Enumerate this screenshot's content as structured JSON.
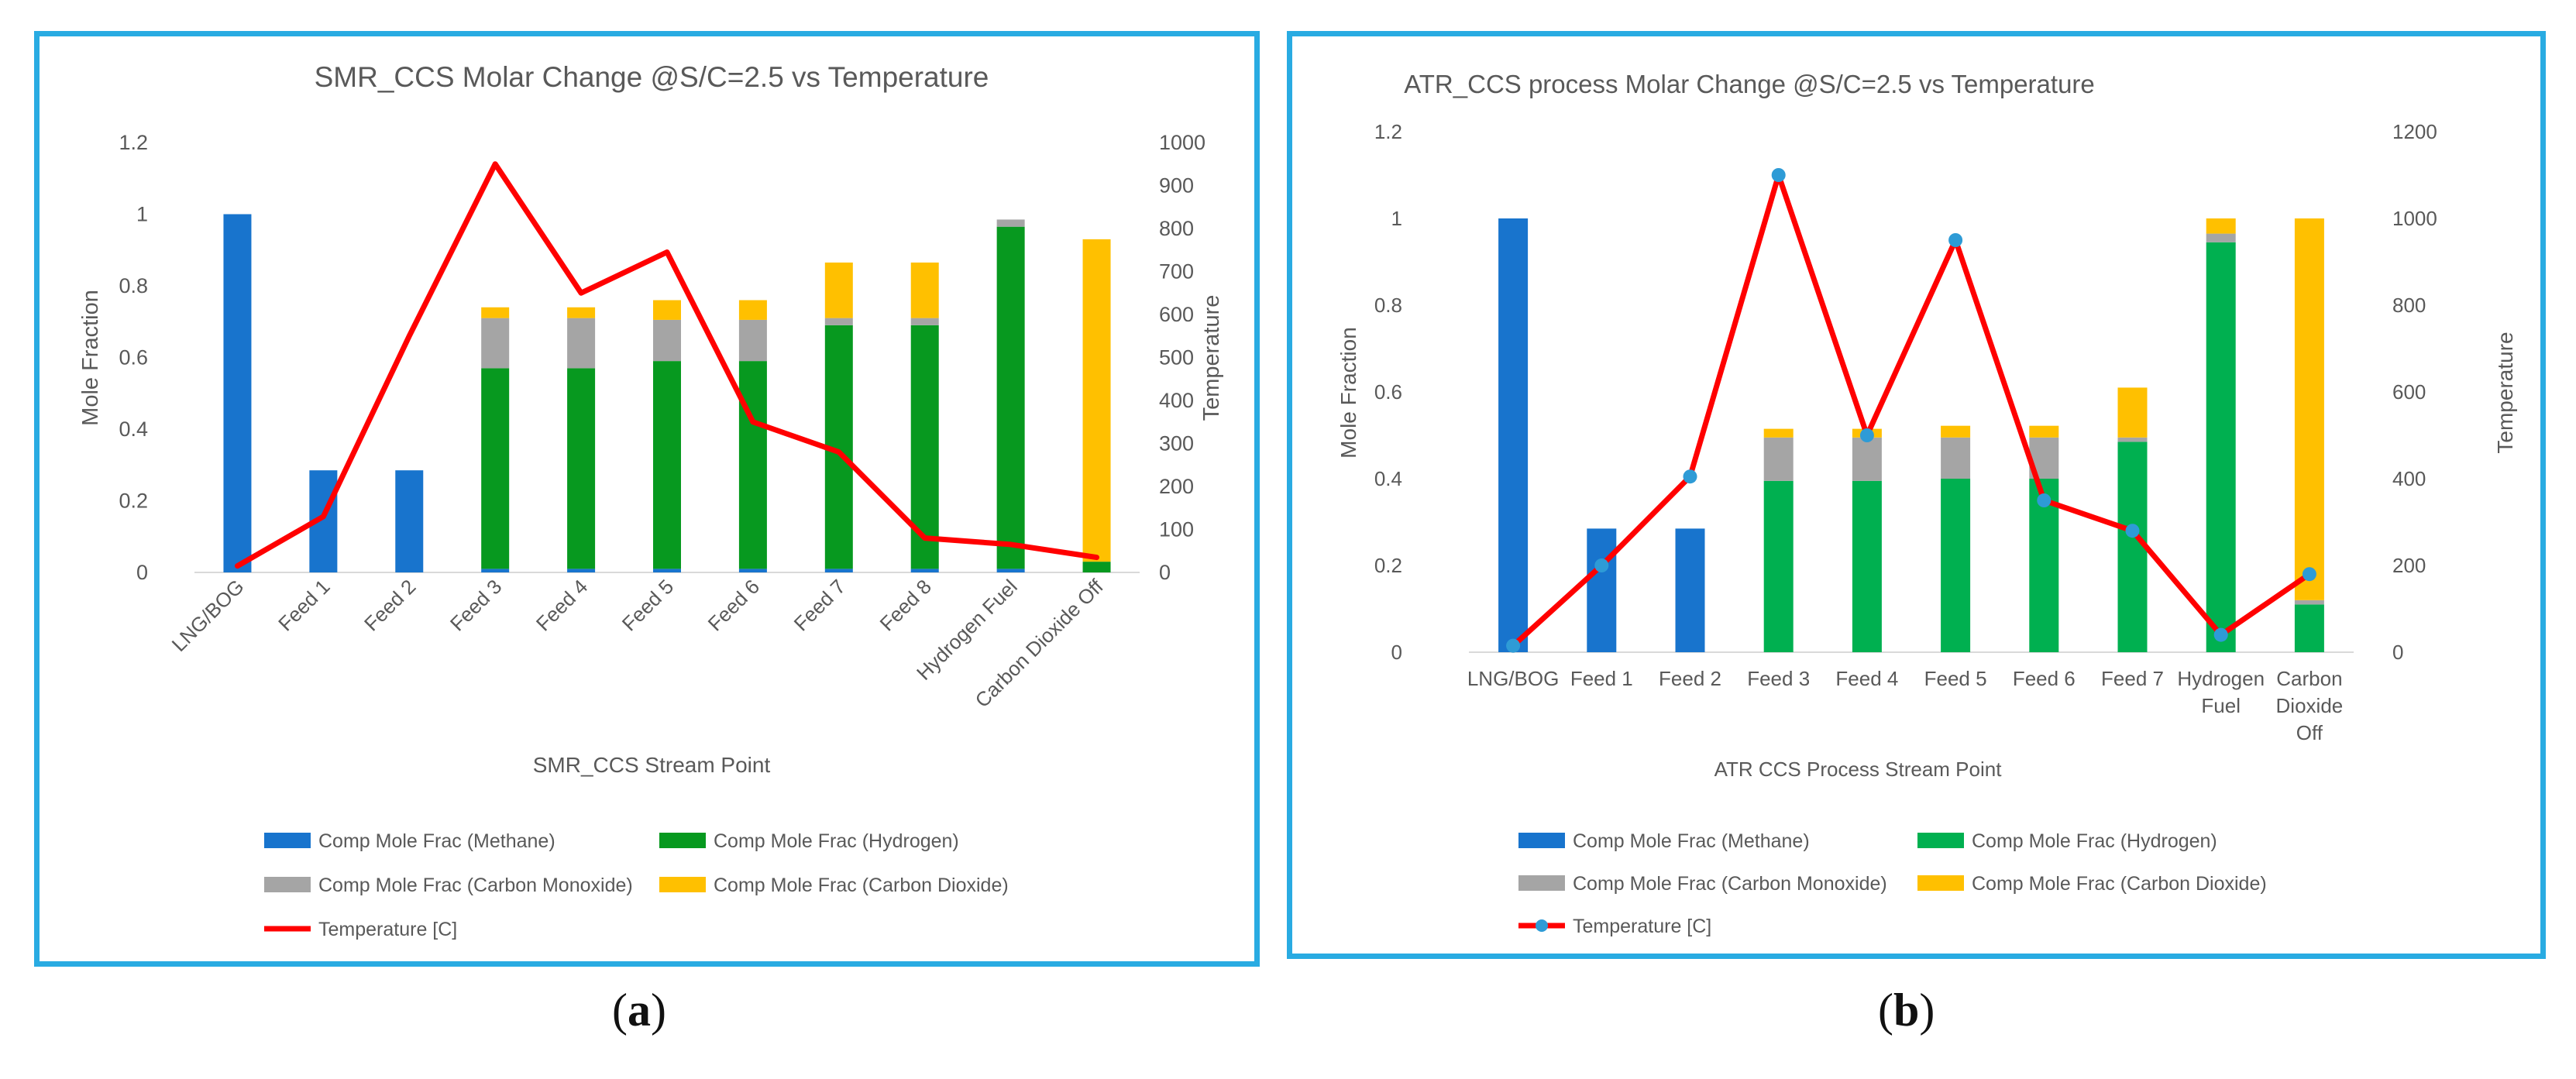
{
  "colors": {
    "methane": "#1874CD",
    "hydrogen_a": "#07991F",
    "hydrogen_b": "#00B050",
    "carbon_monoxide": "#A5A5A5",
    "carbon_dioxide": "#FFC000",
    "temperature": "#FF0000",
    "temperature_marker": "#2E9BD6",
    "frame": "#29ABE2"
  },
  "captions": {
    "a_open": "(",
    "a_letter": "a",
    "a_close": ")",
    "b_open": "(",
    "b_letter": "b",
    "b_close": ")"
  },
  "chart_data": [
    {
      "type": "bar",
      "stacked": true,
      "title": "SMR_CCS  Molar Change @S/C=2.5  vs Temperature",
      "xlabel": "SMR_CCS Stream Point",
      "ylabel": "Mole Fraction",
      "y2label": "Temperature",
      "ylim": [
        0,
        1.2
      ],
      "y2lim": [
        0,
        1000
      ],
      "yticks": [
        "0",
        "0.2",
        "0.4",
        "0.6",
        "0.8",
        "1",
        "1.2"
      ],
      "y2ticks": [
        "0",
        "100",
        "200",
        "300",
        "400",
        "500",
        "600",
        "700",
        "800",
        "900",
        "1000"
      ],
      "categories": [
        "LNG/BOG",
        "Feed 1",
        "Feed 2",
        "Feed 3",
        "Feed 4",
        "Feed 5",
        "Feed 6",
        "Feed 7",
        "Feed 8",
        "Hydrogen Fuel",
        "Carbon Dioxide Off"
      ],
      "series": [
        {
          "name": "Comp Mole Frac (Methane)",
          "color_key": "methane",
          "values": [
            1.0,
            0.285,
            0.285,
            0.01,
            0.01,
            0.01,
            0.01,
            0.01,
            0.01,
            0.01,
            0.0
          ]
        },
        {
          "name": "Comp Mole Frac (Hydrogen)",
          "color_key": "hydrogen_a",
          "values": [
            0.0,
            0.0,
            0.0,
            0.56,
            0.56,
            0.58,
            0.58,
            0.68,
            0.68,
            0.955,
            0.03
          ]
        },
        {
          "name": "Comp Mole Frac (Carbon Monoxide)",
          "color_key": "carbon_monoxide",
          "values": [
            0.0,
            0.0,
            0.0,
            0.14,
            0.14,
            0.115,
            0.115,
            0.02,
            0.02,
            0.02,
            0.0
          ]
        },
        {
          "name": "Comp Mole Frac (Carbon Dioxide)",
          "color_key": "carbon_dioxide",
          "values": [
            0.0,
            0.0,
            0.0,
            0.03,
            0.03,
            0.055,
            0.055,
            0.155,
            0.155,
            0.0,
            0.9
          ]
        }
      ],
      "line": {
        "name": "Temperature [C]",
        "values": [
          15,
          130,
          550,
          950,
          650,
          745,
          350,
          280,
          80,
          65,
          35
        ],
        "markers": false
      },
      "legend": "bottom"
    },
    {
      "type": "bar",
      "stacked": true,
      "title": "ATR_CCS process Molar Change @S/C=2.5 vs Temperature",
      "xlabel": "ATR CCS Process Stream Point",
      "ylabel": "Mole Fraction",
      "y2label": "Temperature",
      "ylim": [
        0,
        1.2
      ],
      "y2lim": [
        0,
        1200
      ],
      "yticks": [
        "0",
        "0.2",
        "0.4",
        "0.6",
        "0.8",
        "1",
        "1.2"
      ],
      "y2ticks": [
        "0",
        "200",
        "400",
        "600",
        "800",
        "1000",
        "1200"
      ],
      "categories": [
        "LNG/BOG",
        "Feed 1",
        "Feed 2",
        "Feed 3",
        "Feed 4",
        "Feed 5",
        "Feed 6",
        "Feed 7",
        "Hydrogen Fuel",
        "Carbon Dioxide Off"
      ],
      "category_lines": [
        [
          "LNG/BOG"
        ],
        [
          "Feed 1"
        ],
        [
          "Feed 2"
        ],
        [
          "Feed 3"
        ],
        [
          "Feed 4"
        ],
        [
          "Feed 5"
        ],
        [
          "Feed 6"
        ],
        [
          "Feed 7"
        ],
        [
          "Hydrogen",
          "Fuel"
        ],
        [
          "Carbon",
          "Dioxide",
          "Off"
        ]
      ],
      "series": [
        {
          "name": "Comp Mole Frac (Methane)",
          "color_key": "methane",
          "values": [
            1.0,
            0.285,
            0.285,
            0.0,
            0.0,
            0.0,
            0.0,
            0.0,
            0.0,
            0.0
          ]
        },
        {
          "name": "Comp Mole Frac (Hydrogen)",
          "color_key": "hydrogen_b",
          "values": [
            0.0,
            0.0,
            0.0,
            0.395,
            0.395,
            0.4,
            0.4,
            0.485,
            0.945,
            0.11
          ]
        },
        {
          "name": "Comp Mole Frac (Carbon Monoxide)",
          "color_key": "carbon_monoxide",
          "values": [
            0.0,
            0.0,
            0.0,
            0.1,
            0.1,
            0.095,
            0.095,
            0.01,
            0.02,
            0.01
          ]
        },
        {
          "name": "Comp Mole Frac (Carbon Dioxide)",
          "color_key": "carbon_dioxide",
          "values": [
            0.0,
            0.0,
            0.0,
            0.02,
            0.02,
            0.027,
            0.027,
            0.115,
            0.035,
            0.88
          ]
        }
      ],
      "line": {
        "name": "Temperature [C]",
        "values": [
          15,
          200,
          405,
          1100,
          500,
          950,
          350,
          280,
          40,
          180
        ],
        "markers": true
      },
      "legend": "bottom"
    }
  ]
}
